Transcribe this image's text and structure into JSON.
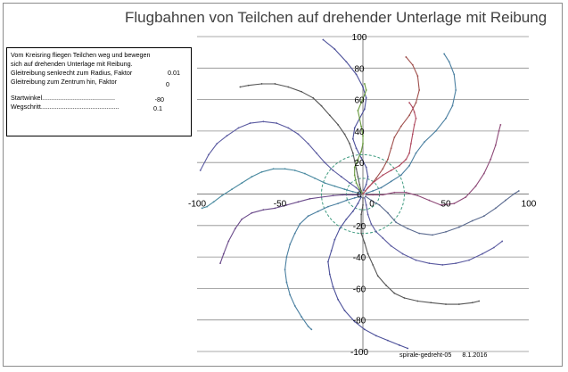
{
  "chart_data": {
    "type": "scatter",
    "title": "Flugbahnen von Teilchen auf drehender Unterlage mit Reibung",
    "xlim": [
      -100,
      100
    ],
    "ylim": [
      -100,
      100
    ],
    "x_ticks": [
      -100,
      -50,
      0,
      50,
      100
    ],
    "y_ticks": [
      100,
      80,
      60,
      40,
      20,
      0,
      -20,
      -40,
      -60,
      -80,
      -100
    ],
    "x_tick_labels": [
      "-100",
      "-50",
      "0",
      "50",
      "100"
    ],
    "y_tick_labels": [
      "100",
      "80",
      "60",
      "40",
      "20",
      "0",
      "-20",
      "-40",
      "-60",
      "-80",
      "-100"
    ],
    "grid": "horizontal",
    "circles": [
      {
        "radius": 10,
        "style": "dashed",
        "color": "#3f9b80"
      },
      {
        "radius": 25,
        "style": "dashed",
        "color": "#3f9b80"
      }
    ],
    "series": [
      {
        "color": "#4b4f99",
        "points": [
          [
            0.5,
            2.5
          ],
          [
            2,
            6
          ],
          [
            3,
            11
          ],
          [
            2,
            17
          ],
          [
            -1,
            23
          ],
          [
            -4,
            29
          ],
          [
            -6,
            35
          ],
          [
            -5,
            42
          ],
          [
            -2,
            48
          ],
          [
            1,
            54
          ],
          [
            2,
            61
          ],
          [
            0,
            68
          ],
          [
            -4,
            76
          ],
          [
            -10,
            84
          ],
          [
            -17,
            92
          ],
          [
            -24,
            98
          ]
        ]
      },
      {
        "color": "#a0504d",
        "points": [
          [
            1.5,
            2
          ],
          [
            4,
            5
          ],
          [
            8,
            10
          ],
          [
            12,
            16
          ],
          [
            15,
            22
          ],
          [
            17,
            29
          ],
          [
            19,
            36
          ],
          [
            23,
            43
          ],
          [
            28,
            50
          ],
          [
            32,
            58
          ],
          [
            34,
            66
          ],
          [
            33,
            75
          ],
          [
            30,
            82
          ],
          [
            26,
            87
          ]
        ]
      },
      {
        "color": "#4a7fa0",
        "points": [
          [
            2,
            0.5
          ],
          [
            6,
            2
          ],
          [
            11,
            4
          ],
          [
            17,
            8
          ],
          [
            23,
            12
          ],
          [
            28,
            18
          ],
          [
            32,
            26
          ],
          [
            37,
            33
          ],
          [
            44,
            40
          ],
          [
            50,
            48
          ],
          [
            54,
            56
          ],
          [
            56,
            66
          ],
          [
            55,
            76
          ],
          [
            52,
            84
          ],
          [
            49,
            89
          ]
        ]
      },
      {
        "color": "#8e4a78",
        "points": [
          [
            2,
            -0.5
          ],
          [
            6,
            -0.5
          ],
          [
            12,
            -0.5
          ],
          [
            19,
            1
          ],
          [
            26,
            1
          ],
          [
            33,
            -1
          ],
          [
            40,
            -4
          ],
          [
            47,
            -7
          ],
          [
            55,
            -6
          ],
          [
            62,
            -2
          ],
          [
            68,
            5
          ],
          [
            73,
            13
          ],
          [
            77,
            22
          ],
          [
            80,
            31
          ],
          [
            82,
            40
          ],
          [
            83,
            44
          ]
        ]
      },
      {
        "color": "#5a6a8f",
        "points": [
          [
            1.5,
            -1.5
          ],
          [
            5,
            -4
          ],
          [
            10,
            -7
          ],
          [
            15,
            -12
          ],
          [
            20,
            -18
          ],
          [
            27,
            -22
          ],
          [
            34,
            -25
          ],
          [
            42,
            -26
          ],
          [
            50,
            -24
          ],
          [
            58,
            -21
          ],
          [
            66,
            -17
          ],
          [
            73,
            -14
          ],
          [
            80,
            -9
          ],
          [
            86,
            -4
          ],
          [
            91,
            0
          ],
          [
            94,
            2
          ]
        ]
      },
      {
        "color": "#5a5aa0",
        "points": [
          [
            1,
            -2.5
          ],
          [
            2,
            -7
          ],
          [
            3,
            -13
          ],
          [
            5,
            -19
          ],
          [
            8,
            -24
          ],
          [
            12,
            -28
          ],
          [
            17,
            -33
          ],
          [
            24,
            -38
          ],
          [
            32,
            -42
          ],
          [
            40,
            -44
          ],
          [
            48,
            -45
          ],
          [
            56,
            -44
          ],
          [
            64,
            -42
          ],
          [
            72,
            -38
          ],
          [
            79,
            -34
          ],
          [
            84,
            -30
          ]
        ]
      },
      {
        "color": "#555555",
        "points": [
          [
            0,
            -2.5
          ],
          [
            0,
            -7
          ],
          [
            -1,
            -13
          ],
          [
            -1,
            -19
          ],
          [
            -1,
            -25
          ],
          [
            1,
            -31
          ],
          [
            3,
            -38
          ],
          [
            6,
            -45
          ],
          [
            9,
            -52
          ],
          [
            14,
            -58
          ],
          [
            19,
            -63
          ],
          [
            25,
            -66
          ],
          [
            33,
            -68
          ],
          [
            41,
            -69
          ],
          [
            50,
            -70
          ],
          [
            58,
            -70
          ],
          [
            66,
            -69
          ],
          [
            70,
            -68
          ]
        ]
      },
      {
        "color": "#4b4f99",
        "points": [
          [
            -1,
            -2
          ],
          [
            -3,
            -6
          ],
          [
            -6,
            -11
          ],
          [
            -10,
            -16
          ],
          [
            -14,
            -22
          ],
          [
            -17,
            -29
          ],
          [
            -19,
            -36
          ],
          [
            -21,
            -43
          ],
          [
            -20,
            -51
          ],
          [
            -18,
            -59
          ],
          [
            -15,
            -67
          ],
          [
            -11,
            -74
          ],
          [
            -5,
            -81
          ],
          [
            1,
            -86
          ],
          [
            8,
            -90
          ],
          [
            15,
            -93
          ],
          [
            22,
            -96
          ],
          [
            27,
            -98
          ]
        ]
      },
      {
        "color": "#4a7fa0",
        "points": [
          [
            -1.5,
            -1.5
          ],
          [
            -5,
            -2.5
          ],
          [
            -10,
            -4
          ],
          [
            -15,
            -6
          ],
          [
            -21,
            -8
          ],
          [
            -27,
            -11
          ],
          [
            -33,
            -14
          ],
          [
            -38,
            -19
          ],
          [
            -41,
            -25
          ],
          [
            -44,
            -32
          ],
          [
            -46,
            -40
          ],
          [
            -47,
            -48
          ],
          [
            -46,
            -56
          ],
          [
            -44,
            -64
          ],
          [
            -41,
            -71
          ],
          [
            -37,
            -78
          ],
          [
            -33,
            -84
          ],
          [
            -31,
            -86
          ]
        ]
      },
      {
        "color": "#6a4a8a",
        "points": [
          [
            -2,
            -0.5
          ],
          [
            -6,
            -0.5
          ],
          [
            -12,
            -0.5
          ],
          [
            -18,
            -1
          ],
          [
            -25,
            -2
          ],
          [
            -32,
            -3
          ],
          [
            -39,
            -5
          ],
          [
            -46,
            -7
          ],
          [
            -53,
            -9
          ],
          [
            -60,
            -10
          ],
          [
            -67,
            -12
          ],
          [
            -73,
            -16
          ],
          [
            -77,
            -22
          ],
          [
            -81,
            -30
          ],
          [
            -84,
            -38
          ],
          [
            -86,
            -44
          ]
        ]
      },
      {
        "color": "#4a8aa0",
        "points": [
          [
            -2,
            0.5
          ],
          [
            -6,
            1.5
          ],
          [
            -11,
            3
          ],
          [
            -17,
            5
          ],
          [
            -23,
            7
          ],
          [
            -29,
            10
          ],
          [
            -35,
            13
          ],
          [
            -41,
            15
          ],
          [
            -47,
            16
          ],
          [
            -54,
            16
          ],
          [
            -61,
            14
          ],
          [
            -67,
            11
          ],
          [
            -73,
            7
          ],
          [
            -79,
            3
          ],
          [
            -85,
            -1
          ],
          [
            -90,
            -5
          ],
          [
            -94,
            -8
          ],
          [
            -97,
            -9
          ]
        ]
      },
      {
        "color": "#5a5aa0",
        "points": [
          [
            -1.5,
            1.5
          ],
          [
            -4,
            4
          ],
          [
            -8,
            7
          ],
          [
            -13,
            11
          ],
          [
            -18,
            15
          ],
          [
            -23,
            20
          ],
          [
            -28,
            26
          ],
          [
            -33,
            32
          ],
          [
            -39,
            38
          ],
          [
            -45,
            42
          ],
          [
            -52,
            45
          ],
          [
            -60,
            46
          ],
          [
            -68,
            45
          ],
          [
            -75,
            42
          ],
          [
            -82,
            37
          ],
          [
            -88,
            32
          ],
          [
            -93,
            25
          ],
          [
            -98,
            15
          ]
        ]
      },
      {
        "color": "#555555",
        "points": [
          [
            -1,
            2
          ],
          [
            -2,
            6
          ],
          [
            -3,
            11
          ],
          [
            -4,
            16
          ],
          [
            -5,
            21
          ],
          [
            -6,
            26
          ],
          [
            -8,
            32
          ],
          [
            -11,
            38
          ],
          [
            -15,
            44
          ],
          [
            -20,
            50
          ],
          [
            -25,
            56
          ],
          [
            -30,
            61
          ],
          [
            -37,
            65
          ],
          [
            -45,
            68
          ],
          [
            -53,
            70
          ],
          [
            -61,
            70
          ],
          [
            -69,
            69
          ],
          [
            -74,
            68
          ]
        ]
      },
      {
        "color": "#6a9a40",
        "points": [
          [
            0,
            0
          ],
          [
            -2,
            3
          ],
          [
            -4,
            7
          ],
          [
            -5,
            12
          ],
          [
            -5,
            17
          ],
          [
            -3,
            22
          ],
          [
            -1,
            27
          ],
          [
            0,
            32
          ],
          [
            0,
            37
          ],
          [
            -1,
            43
          ],
          [
            -2,
            48
          ],
          [
            -3,
            53
          ],
          [
            -1,
            58
          ],
          [
            1,
            63
          ],
          [
            2,
            66
          ],
          [
            1,
            70
          ]
        ]
      },
      {
        "color": "#b04a60",
        "points": [
          [
            0,
            0
          ],
          [
            3,
            4
          ],
          [
            7,
            8
          ],
          [
            12,
            12
          ],
          [
            17,
            15
          ],
          [
            22,
            18
          ],
          [
            26,
            22
          ],
          [
            28,
            26
          ],
          [
            29,
            32
          ],
          [
            30,
            38
          ],
          [
            31,
            44
          ],
          [
            32,
            48
          ],
          [
            31,
            52
          ],
          [
            30,
            55
          ],
          [
            28,
            58
          ]
        ]
      }
    ]
  },
  "info": {
    "line1": "Vom Kreisring fliegen Teilchen weg und bewegen",
    "line2": "sich auf drehenden Unterlage mit Reibung.",
    "line3_label": "Gleitreibung  senkrecht zum Radius, Faktor",
    "line3_value": "0.01",
    "line4_label": "Gleitreibung zum Zentrum hin, Faktor",
    "line4_value": "0",
    "startwinkel_label": "Startwinkel.........................................",
    "startwinkel_value": "-80",
    "wegschritt_label": "Wegschritt............................................",
    "wegschritt_value": "0.1"
  },
  "footer": {
    "name": "spirale-gedreht-05",
    "date": "8.1.2016"
  }
}
